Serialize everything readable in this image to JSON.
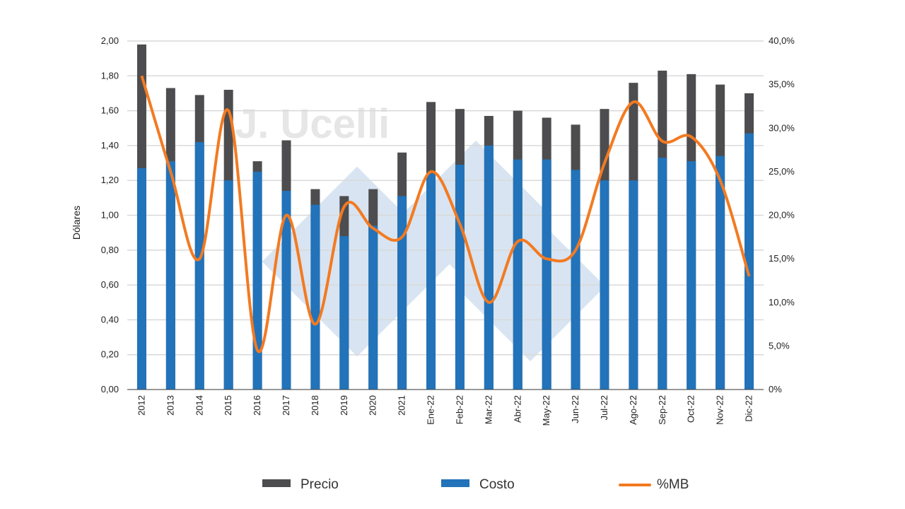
{
  "watermark": {
    "text": "J. Ucelli"
  },
  "chart_data": {
    "type": "bar",
    "categories": [
      "2012",
      "2013",
      "2014",
      "2015",
      "2016",
      "2017",
      "2018",
      "2019",
      "2020",
      "2021",
      "Ene-22",
      "Feb-22",
      "Mar-22",
      "Abr-22",
      "May-22",
      "Jun-22",
      "Jul-22",
      "Ago-22",
      "Sep-22",
      "Oct-22",
      "Nov-22",
      "Dic-22"
    ],
    "series": [
      {
        "name": "Precio",
        "type": "bar",
        "axis": "left",
        "color": "#4d4d4f",
        "values": [
          1.98,
          1.73,
          1.69,
          1.72,
          1.31,
          1.43,
          1.15,
          1.11,
          1.15,
          1.36,
          1.65,
          1.61,
          1.57,
          1.6,
          1.56,
          1.52,
          1.61,
          1.76,
          1.83,
          1.81,
          1.75,
          1.7
        ]
      },
      {
        "name": "Costo",
        "type": "bar",
        "axis": "left",
        "color": "#2273b9",
        "values": [
          1.27,
          1.31,
          1.42,
          1.2,
          1.25,
          1.14,
          1.06,
          0.88,
          0.94,
          1.11,
          1.24,
          1.29,
          1.4,
          1.32,
          1.32,
          1.26,
          1.2,
          1.2,
          1.33,
          1.31,
          1.34,
          1.47
        ]
      },
      {
        "name": "%MB",
        "type": "line",
        "axis": "right",
        "color": "#f37a21",
        "values": [
          0.36,
          0.25,
          0.15,
          0.32,
          0.045,
          0.2,
          0.075,
          0.21,
          0.185,
          0.175,
          0.25,
          0.19,
          0.1,
          0.17,
          0.15,
          0.16,
          0.26,
          0.33,
          0.285,
          0.29,
          0.24,
          0.13
        ]
      }
    ],
    "ylabel": "Dólares",
    "xlabel": "",
    "ylim": [
      0,
      2.0
    ],
    "y_ticks": [
      {
        "v": 0,
        "label": "0,00"
      },
      {
        "v": 0.2,
        "label": "0,20"
      },
      {
        "v": 0.4,
        "label": "0,40"
      },
      {
        "v": 0.6,
        "label": "0,60"
      },
      {
        "v": 0.8,
        "label": "0,80"
      },
      {
        "v": 1.0,
        "label": "1,00"
      },
      {
        "v": 1.2,
        "label": "1,20"
      },
      {
        "v": 1.4,
        "label": "1,40"
      },
      {
        "v": 1.6,
        "label": "1,60"
      },
      {
        "v": 1.8,
        "label": "1,80"
      },
      {
        "v": 2.0,
        "label": "2,00"
      }
    ],
    "y2lim": [
      0,
      0.4
    ],
    "y2_ticks": [
      {
        "v": 0,
        "label": "0%"
      },
      {
        "v": 0.05,
        "label": "5,0%"
      },
      {
        "v": 0.1,
        "label": "10,0%"
      },
      {
        "v": 0.15,
        "label": "15,0%"
      },
      {
        "v": 0.2,
        "label": "20,0%"
      },
      {
        "v": 0.25,
        "label": "25,0%"
      },
      {
        "v": 0.3,
        "label": "30,0%"
      },
      {
        "v": 0.35,
        "label": "35,0%"
      },
      {
        "v": 0.4,
        "label": "40,0%"
      }
    ],
    "grid": true,
    "legend_position": "bottom"
  }
}
